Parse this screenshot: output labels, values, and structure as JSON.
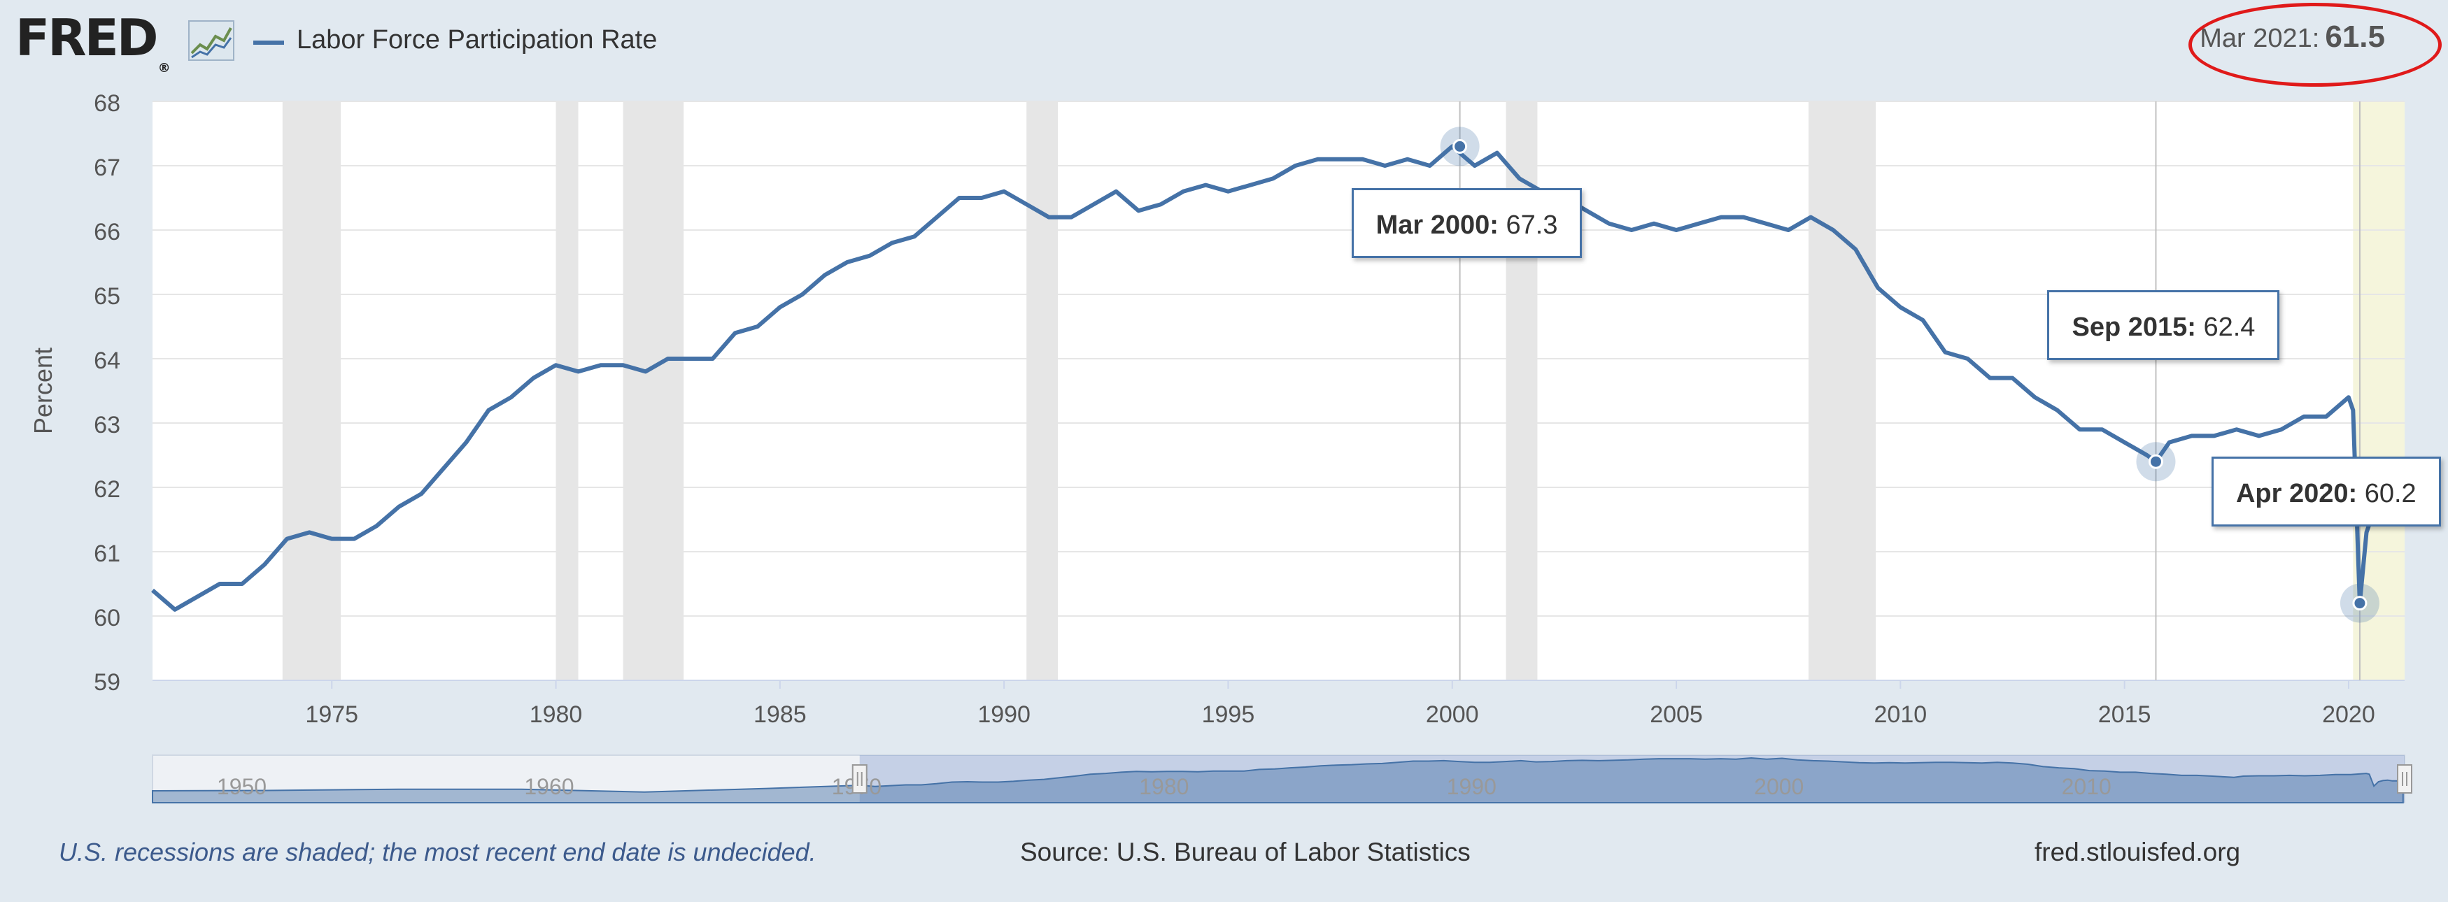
{
  "header": {
    "logo_text": "FRED",
    "logo_reg": "®",
    "series_label": "Labor Force Participation Rate",
    "latest_label": "Mar 2021:",
    "latest_value": "61.5"
  },
  "colors": {
    "series": "#4572a7",
    "recession": "#e6e6e6",
    "undecided_recession": "#f5f5dc",
    "background": "#e1e9f0",
    "highlight_circle": "#e01a1a"
  },
  "chart_data": {
    "type": "line",
    "ylabel": "Percent",
    "xlim": [
      1971.0,
      2021.25
    ],
    "ylim": [
      59,
      68
    ],
    "yticks": [
      59,
      60,
      61,
      62,
      63,
      64,
      65,
      66,
      67,
      68
    ],
    "xticks": [
      1975,
      1980,
      1985,
      1990,
      1995,
      2000,
      2005,
      2010,
      2015,
      2020
    ],
    "grid": true,
    "recessions": [
      [
        1973.9,
        1975.2
      ],
      [
        1980.0,
        1980.5
      ],
      [
        1981.5,
        1982.85
      ],
      [
        1990.5,
        1991.2
      ],
      [
        2001.2,
        2001.9
      ],
      [
        2007.95,
        2009.45
      ]
    ],
    "undecided_recession": [
      2020.1,
      2021.25
    ],
    "series": [
      {
        "name": "Labor Force Participation Rate",
        "x": [
          1971.0,
          1971.5,
          1972.0,
          1972.5,
          1973.0,
          1973.5,
          1974.0,
          1974.5,
          1975.0,
          1975.5,
          1976.0,
          1976.5,
          1977.0,
          1977.5,
          1978.0,
          1978.5,
          1979.0,
          1979.5,
          1980.0,
          1980.5,
          1981.0,
          1981.5,
          1982.0,
          1982.5,
          1983.0,
          1983.5,
          1984.0,
          1984.5,
          1985.0,
          1985.5,
          1986.0,
          1986.5,
          1987.0,
          1987.5,
          1988.0,
          1988.5,
          1989.0,
          1989.5,
          1990.0,
          1990.5,
          1991.0,
          1991.5,
          1992.0,
          1992.5,
          1993.0,
          1993.5,
          1994.0,
          1994.5,
          1995.0,
          1995.5,
          1996.0,
          1996.5,
          1997.0,
          1997.5,
          1998.0,
          1998.5,
          1999.0,
          1999.5,
          2000.0,
          2000.5,
          2001.0,
          2001.5,
          2002.0,
          2002.5,
          2003.0,
          2003.5,
          2004.0,
          2004.5,
          2005.0,
          2005.5,
          2006.0,
          2006.5,
          2007.0,
          2007.5,
          2008.0,
          2008.5,
          2009.0,
          2009.5,
          2010.0,
          2010.5,
          2011.0,
          2011.5,
          2012.0,
          2012.5,
          2013.0,
          2013.5,
          2014.0,
          2014.5,
          2015.0,
          2015.5,
          2015.7,
          2016.0,
          2016.5,
          2017.0,
          2017.5,
          2018.0,
          2018.5,
          2019.0,
          2019.5,
          2020.0,
          2020.1,
          2020.25,
          2020.4,
          2020.55,
          2020.7,
          2020.85,
          2021.0,
          2021.2
        ],
        "values": [
          60.4,
          60.1,
          60.3,
          60.5,
          60.5,
          60.8,
          61.2,
          61.3,
          61.2,
          61.2,
          61.4,
          61.7,
          61.9,
          62.3,
          62.7,
          63.2,
          63.4,
          63.7,
          63.9,
          63.8,
          63.9,
          63.9,
          63.8,
          64.0,
          64.0,
          64.0,
          64.4,
          64.5,
          64.8,
          65.0,
          65.3,
          65.5,
          65.6,
          65.8,
          65.9,
          66.2,
          66.5,
          66.5,
          66.6,
          66.4,
          66.2,
          66.2,
          66.4,
          66.6,
          66.3,
          66.4,
          66.6,
          66.7,
          66.6,
          66.7,
          66.8,
          67.0,
          67.1,
          67.1,
          67.1,
          67.0,
          67.1,
          67.0,
          67.3,
          67.0,
          67.2,
          66.8,
          66.6,
          66.5,
          66.3,
          66.1,
          66.0,
          66.1,
          66.0,
          66.1,
          66.2,
          66.2,
          66.1,
          66.0,
          66.2,
          66.0,
          65.7,
          65.1,
          64.8,
          64.6,
          64.1,
          64.0,
          63.7,
          63.7,
          63.4,
          63.2,
          62.9,
          62.9,
          62.7,
          62.5,
          62.4,
          62.7,
          62.8,
          62.8,
          62.9,
          62.8,
          62.9,
          63.1,
          63.1,
          63.4,
          63.2,
          60.2,
          61.3,
          61.6,
          61.7,
          61.5,
          61.5,
          61.5
        ]
      }
    ],
    "annotations": [
      {
        "label": "Mar 2000:",
        "value": "67.3",
        "x": 2000.17,
        "y": 67.3
      },
      {
        "label": "Sep 2015:",
        "value": "62.4",
        "x": 2015.7,
        "y": 62.4
      },
      {
        "label": "Apr 2020:",
        "value": "60.2",
        "x": 2020.25,
        "y": 60.2
      }
    ],
    "navigator": {
      "xlim": [
        1948,
        2021.25
      ],
      "labels": [
        "1950",
        "1960",
        "1970",
        "1980",
        "1990",
        "2000",
        "2010"
      ],
      "selected": [
        1971.0,
        2021.25
      ]
    }
  },
  "footer": {
    "note": "U.S. recessions are shaded; the most recent end date is undecided.",
    "source": "Source: U.S. Bureau of Labor Statistics",
    "site": "fred.stlouisfed.org"
  }
}
